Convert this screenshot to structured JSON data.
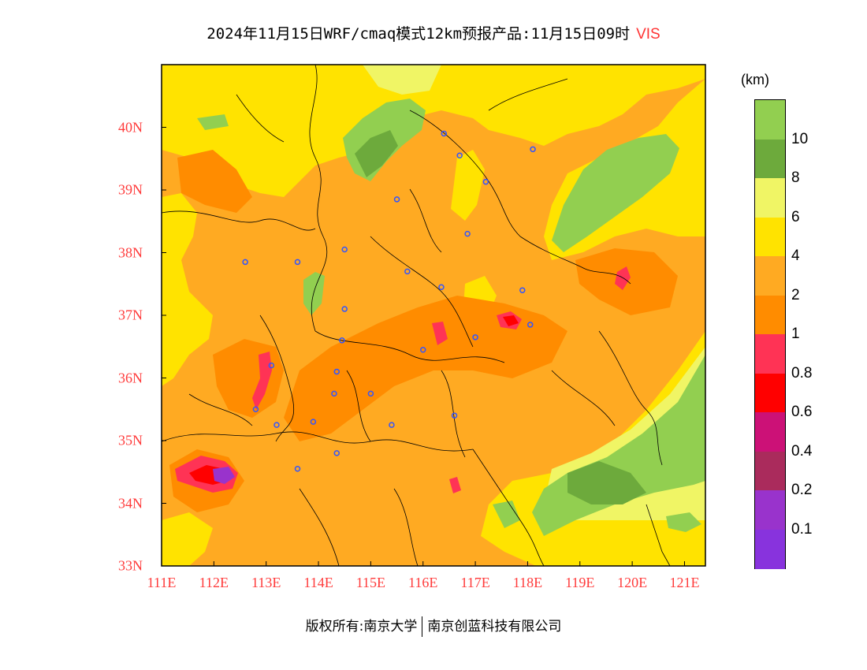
{
  "title": {
    "text": "2024年11月15日WRF/cmaq模式12km预报产品:11月15日09时",
    "variable": "VIS"
  },
  "axes": {
    "x_labels": [
      "111E",
      "112E",
      "113E",
      "114E",
      "115E",
      "116E",
      "117E",
      "118E",
      "119E",
      "120E",
      "121E"
    ],
    "y_labels": [
      "40N",
      "39N",
      "38N",
      "37N",
      "36N",
      "35N",
      "34N",
      "33N"
    ],
    "lon_range": [
      111,
      121.4
    ],
    "lat_range": [
      33,
      41
    ]
  },
  "colorbar": {
    "unit": "(km)",
    "labels": [
      "10",
      "8",
      "6",
      "4",
      "2",
      "1",
      "0.8",
      "0.6",
      "0.4",
      "0.2",
      "0.1"
    ],
    "colors": [
      "#92cf50",
      "#6daa3c",
      "#f0f565",
      "#ffe300",
      "#ffaa22",
      "#ff8c00",
      "#ff3355",
      "#ff0000",
      "#cc1177",
      "#aa2b5c",
      "#9933cc",
      "#8833dd"
    ]
  },
  "footer": {
    "left": "版权所有:南京大学",
    "right": "南京创蓝科技有限公司"
  },
  "map": {
    "colors": {
      "background": "#ffaa22",
      "dark_orange": "#ff8c00",
      "yellow": "#ffe300",
      "light_yellow": "#f0f565",
      "green": "#92cf50",
      "dark_green": "#6daa3c",
      "pink": "#ff3355",
      "red": "#ff0000",
      "purple": "#9933cc",
      "city_marker": "#3355ff",
      "frame": "#000000"
    },
    "city_markers": [
      [
        116.4,
        39.9
      ],
      [
        116.7,
        39.55
      ],
      [
        118.1,
        39.65
      ],
      [
        117.2,
        39.13
      ],
      [
        115.5,
        38.85
      ],
      [
        116.85,
        38.3
      ],
      [
        114.5,
        38.05
      ],
      [
        113.6,
        37.85
      ],
      [
        112.6,
        37.85
      ],
      [
        115.7,
        37.7
      ],
      [
        116.35,
        37.45
      ],
      [
        117.9,
        37.4
      ],
      [
        114.5,
        37.1
      ],
      [
        118.05,
        36.85
      ],
      [
        117.0,
        36.65
      ],
      [
        114.45,
        36.6
      ],
      [
        116.0,
        36.45
      ],
      [
        113.1,
        36.2
      ],
      [
        114.35,
        36.1
      ],
      [
        114.3,
        35.75
      ],
      [
        115.0,
        35.75
      ],
      [
        112.8,
        35.5
      ],
      [
        116.6,
        35.4
      ],
      [
        113.9,
        35.3
      ],
      [
        113.2,
        35.25
      ],
      [
        115.4,
        35.25
      ],
      [
        114.35,
        34.8
      ],
      [
        113.6,
        34.55
      ]
    ]
  }
}
